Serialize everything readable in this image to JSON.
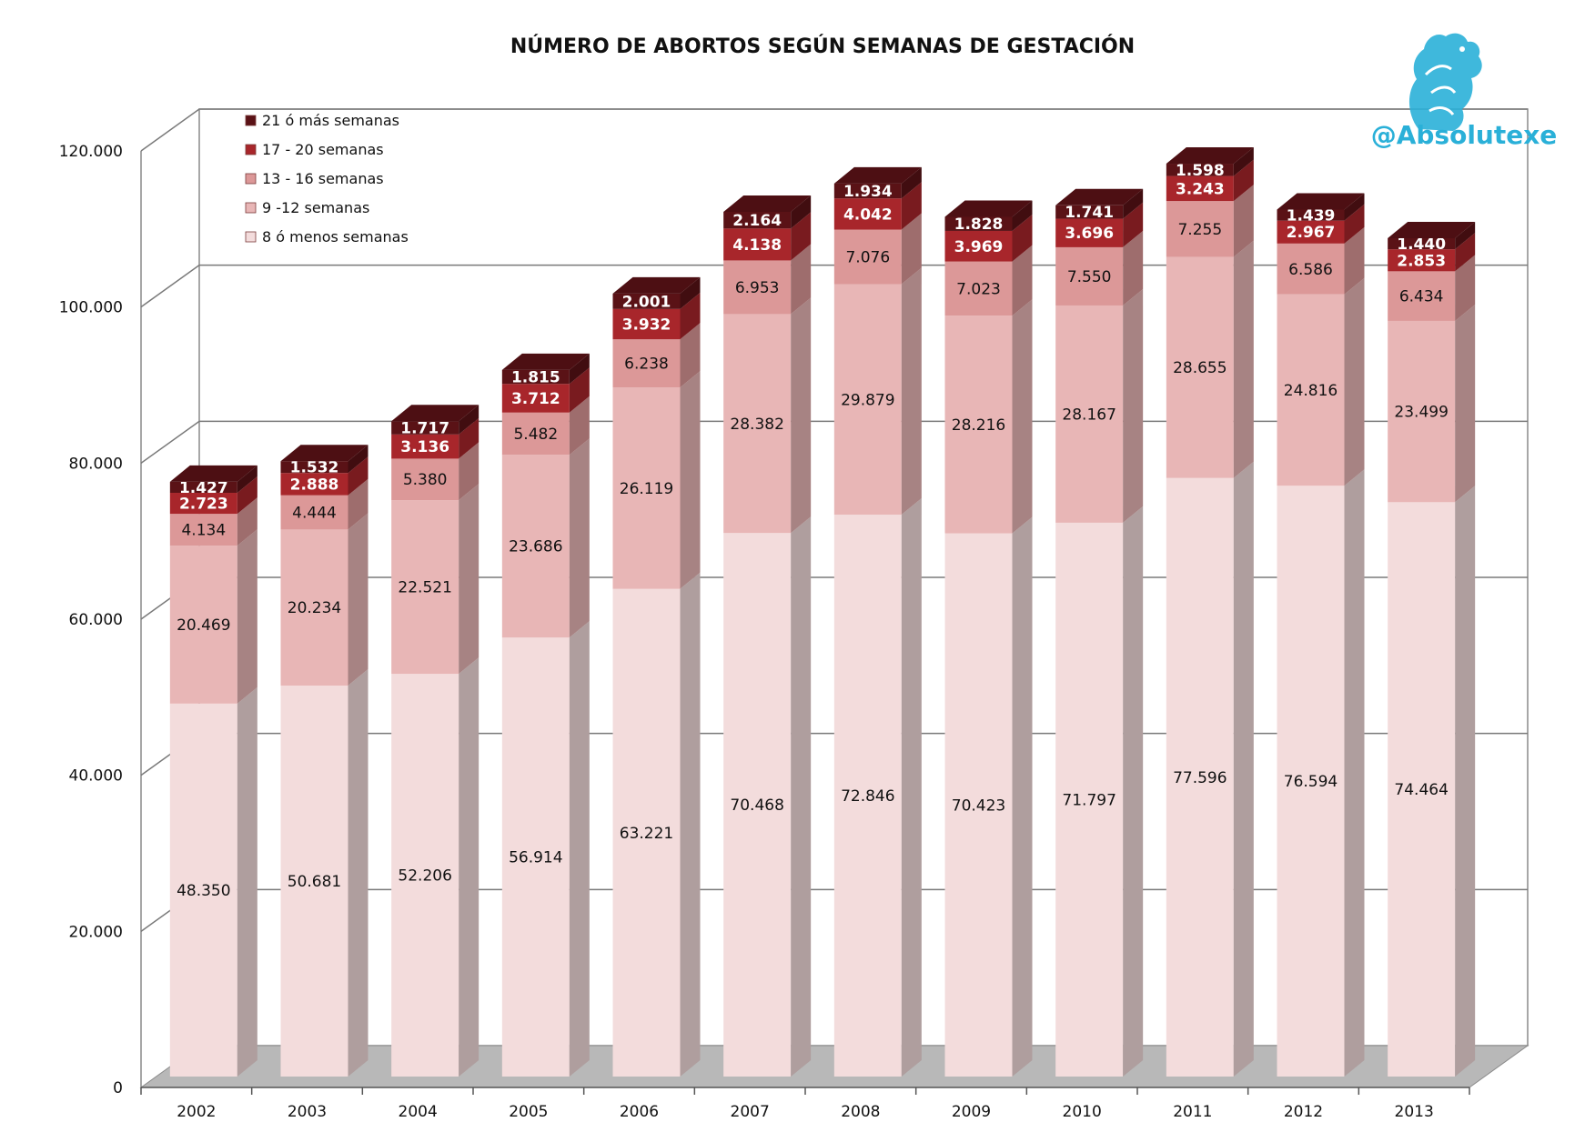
{
  "brand": {
    "handle": "@Absolutexe",
    "color": "#2ab0d8"
  },
  "chart_data": {
    "type": "bar",
    "stacked": true,
    "title": "NÚMERO DE ABORTOS SEGÚN SEMANAS DE GESTACIÓN",
    "xlabel": "",
    "ylabel": "",
    "ylim": [
      0,
      120000
    ],
    "yticks": [
      0,
      20000,
      40000,
      60000,
      80000,
      100000,
      120000
    ],
    "ytick_labels": [
      "0",
      "20.000",
      "40.000",
      "60.000",
      "80.000",
      "100.000",
      "120.000"
    ],
    "grid": true,
    "legend_position": "top-left",
    "categories": [
      "2002",
      "2003",
      "2004",
      "2005",
      "2006",
      "2007",
      "2008",
      "2009",
      "2010",
      "2011",
      "2012",
      "2013"
    ],
    "series": [
      {
        "name": "8 ó menos semanas",
        "color": "#f3dcdc",
        "values": [
          48350,
          50681,
          52206,
          56914,
          63221,
          70468,
          72846,
          70423,
          71797,
          77596,
          76594,
          74464
        ],
        "labels": [
          "48.350",
          "50.681",
          "52.206",
          "56.914",
          "63.221",
          "70.468",
          "72.846",
          "70.423",
          "71.797",
          "77.596",
          "76.594",
          "74.464"
        ]
      },
      {
        "name": "9 -12 semanas",
        "color": "#e8b6b6",
        "values": [
          20469,
          20234,
          22521,
          23686,
          26119,
          28382,
          29879,
          28216,
          28167,
          28655,
          24816,
          23499
        ],
        "labels": [
          "20.469",
          "20.234",
          "22.521",
          "23.686",
          "26.119",
          "28.382",
          "29.879",
          "28.216",
          "28.167",
          "28.655",
          "24.816",
          "23.499"
        ]
      },
      {
        "name": "13 - 16 semanas",
        "color": "#dc9898",
        "values": [
          4134,
          4444,
          5380,
          5482,
          6238,
          6953,
          7076,
          7023,
          7550,
          7255,
          6586,
          6434
        ],
        "labels": [
          "4.134",
          "4.444",
          "5.380",
          "5.482",
          "6.238",
          "6.953",
          "7.076",
          "7.023",
          "7.550",
          "7.255",
          "6.586",
          "6.434"
        ]
      },
      {
        "name": "17 - 20 semanas",
        "color": "#a8262b",
        "values": [
          2723,
          2888,
          3136,
          3712,
          3932,
          4138,
          4042,
          3969,
          3696,
          3243,
          2967,
          2853
        ],
        "labels": [
          "2.723",
          "2.888",
          "3.136",
          "3.712",
          "3.932",
          "4.138",
          "4.042",
          "3.969",
          "3.696",
          "3.243",
          "2.967",
          "2.853"
        ]
      },
      {
        "name": "21 ó más semanas",
        "color": "#5a1216",
        "values": [
          1427,
          1532,
          1717,
          1815,
          2001,
          2164,
          1934,
          1828,
          1741,
          1598,
          1439,
          1440
        ],
        "labels": [
          "1.427",
          "1.532",
          "1.717",
          "1.815",
          "2.001",
          "2.164",
          "1.934",
          "1.828",
          "1.741",
          "1.598",
          "1.439",
          "1.440"
        ]
      }
    ]
  }
}
